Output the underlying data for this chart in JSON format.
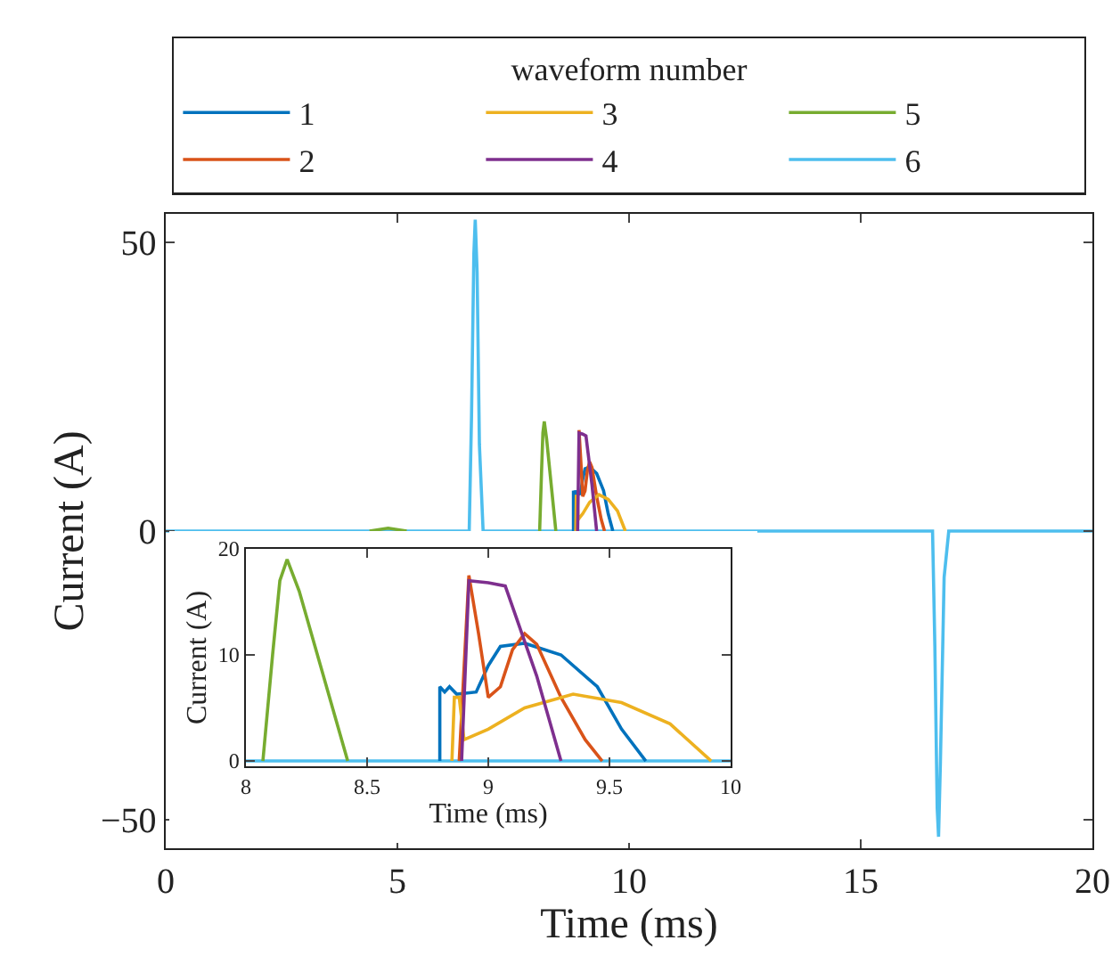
{
  "chart_data": [
    {
      "type": "line",
      "xlabel": "Time (ms)",
      "ylabel": "Current (A)",
      "legend_title": "waveform number",
      "legend": "top",
      "grid": false,
      "marker": "none",
      "line_style": "solid",
      "xlim": [
        0,
        20
      ],
      "xticks": [
        0,
        5,
        10,
        15,
        20
      ],
      "ylim": [
        -55,
        55
      ],
      "yticks": [
        -50,
        0,
        50
      ],
      "series": [
        {
          "name": "1",
          "color": "#0072bd",
          "x": [
            8.8,
            8.8,
            8.82,
            8.84,
            8.87,
            8.95,
            9.0,
            9.05,
            9.15,
            9.3,
            9.45,
            9.55,
            9.65
          ],
          "values": [
            0,
            7,
            6.5,
            7,
            6.3,
            6.5,
            9,
            10.8,
            11.1,
            10,
            7,
            3,
            0
          ]
        },
        {
          "name": "2",
          "color": "#d95319",
          "x": [
            8.92,
            8.96,
            9.0,
            9.05,
            9.1,
            9.15,
            9.2,
            9.3,
            9.4,
            9.47
          ],
          "values": [
            17.5,
            12,
            6,
            7,
            10.5,
            12,
            11,
            6,
            2,
            0
          ]
        },
        {
          "name": "3",
          "color": "#edb120",
          "x": [
            8.85,
            8.86,
            8.88,
            8.9,
            9.0,
            9.15,
            9.35,
            9.55,
            9.75,
            9.92
          ],
          "values": [
            0,
            6,
            6,
            2,
            3,
            5,
            6.3,
            5.5,
            3.5,
            0
          ]
        },
        {
          "name": "4",
          "color": "#7e2f8e",
          "x": [
            8.89,
            8.92,
            9.0,
            9.07,
            9.2,
            9.3
          ],
          "values": [
            0,
            17,
            16.8,
            16.5,
            8,
            0
          ]
        },
        {
          "name": "5",
          "color": "#77ac30",
          "x": [
            4.4,
            4.8,
            5.2,
            6.5,
            8.07,
            8.11,
            8.14,
            8.17,
            8.22,
            8.32,
            8.42
          ],
          "values": [
            0,
            0.5,
            0,
            null,
            0,
            10,
            17,
            19,
            16,
            8,
            0
          ]
        },
        {
          "name": "6",
          "color": "#4dbeee",
          "x": [
            0,
            6.55,
            6.6,
            6.65,
            6.68,
            6.72,
            6.77,
            6.85,
            16.55,
            16.6,
            16.65,
            16.68,
            16.72,
            16.8,
            16.9,
            20
          ],
          "values": [
            0,
            0,
            20,
            48,
            54,
            45,
            15,
            0,
            0,
            -20,
            -48,
            -53,
            -40,
            -8,
            0,
            0
          ]
        }
      ]
    },
    {
      "type": "line",
      "xlabel": "Time (ms)",
      "ylabel": "Current (A)",
      "legend": false,
      "grid": false,
      "marker": "none",
      "line_style": "solid",
      "xlim": [
        8,
        10
      ],
      "xticks": [
        8,
        8.5,
        9,
        9.5,
        10
      ],
      "ylim": [
        -0.5,
        20
      ],
      "yticks": [
        0,
        10,
        20
      ],
      "series": [
        {
          "color": "#0072bd",
          "x": [
            8.8,
            8.8,
            8.82,
            8.84,
            8.87,
            8.95,
            9.0,
            9.05,
            9.15,
            9.3,
            9.45,
            9.55,
            9.65
          ],
          "values": [
            0,
            7,
            6.5,
            7,
            6.3,
            6.5,
            9,
            10.8,
            11.1,
            10,
            7,
            3,
            0
          ]
        },
        {
          "color": "#d95319",
          "x": [
            8.88,
            8.92,
            8.96,
            9.0,
            9.05,
            9.1,
            9.15,
            9.2,
            9.3,
            9.4,
            9.47
          ],
          "values": [
            0,
            17.5,
            12,
            6,
            7,
            10.5,
            12,
            11,
            6,
            2,
            0
          ]
        },
        {
          "color": "#edb120",
          "x": [
            8.85,
            8.86,
            8.88,
            8.9,
            9.0,
            9.15,
            9.35,
            9.55,
            9.75,
            9.92
          ],
          "values": [
            0,
            6,
            6,
            2,
            3,
            5,
            6.3,
            5.5,
            3.5,
            0
          ]
        },
        {
          "color": "#7e2f8e",
          "x": [
            8.89,
            8.92,
            9.0,
            9.07,
            9.2,
            9.3
          ],
          "values": [
            0,
            17,
            16.8,
            16.5,
            8,
            0
          ]
        },
        {
          "color": "#77ac30",
          "x": [
            8.07,
            8.11,
            8.14,
            8.17,
            8.22,
            8.32,
            8.42
          ],
          "values": [
            0,
            10,
            17,
            19,
            16,
            8,
            0
          ]
        },
        {
          "color": "#4dbeee",
          "x": [
            8,
            10
          ],
          "values": [
            0,
            0
          ]
        }
      ]
    }
  ]
}
